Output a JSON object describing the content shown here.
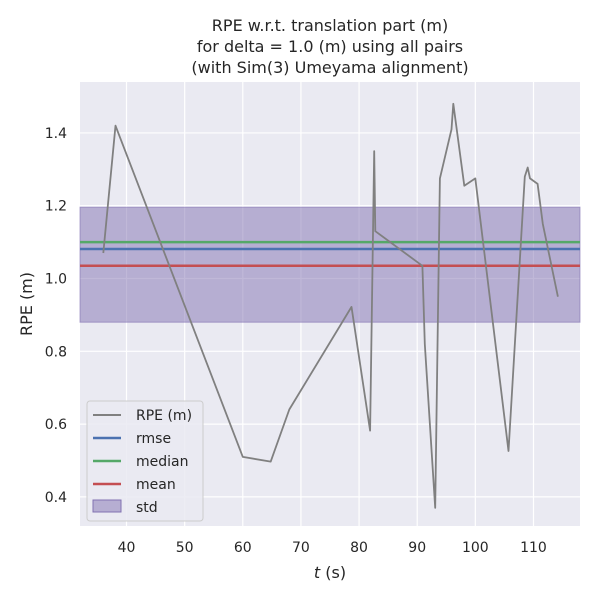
{
  "chart_data": {
    "type": "line",
    "title": [
      "RPE w.r.t. translation part (m)",
      "for delta = 1.0 (m) using all pairs",
      "(with Sim(3) Umeyama alignment)"
    ],
    "xlabel_var": "t",
    "xlabel_unit": " (s)",
    "ylabel": "RPE (m)",
    "xlim": [
      32,
      118
    ],
    "ylim": [
      0.32,
      1.54
    ],
    "xticks": [
      40,
      50,
      60,
      70,
      80,
      90,
      100,
      110
    ],
    "yticks": [
      0.4,
      0.6,
      0.8,
      1.0,
      1.2,
      1.4
    ],
    "ytick_labels": [
      "0.4",
      "0.6",
      "0.8",
      "1.0",
      "1.2",
      "1.4"
    ],
    "grid": true,
    "legend_position": "lower-left",
    "series": [
      {
        "name": "RPE (m)",
        "color": "#808080",
        "x": [
          36.0,
          38.1,
          60.0,
          64.8,
          68.0,
          78.7,
          81.9,
          82.6,
          82.8,
          90.9,
          91.3,
          93.1,
          93.9,
          95.9,
          96.2,
          98.1,
          100.0,
          105.7,
          108.5,
          109.0,
          109.4,
          110.7,
          111.6,
          114.2
        ],
        "y": [
          1.07,
          1.42,
          0.51,
          0.497,
          0.64,
          0.922,
          0.582,
          1.35,
          1.13,
          1.035,
          0.82,
          0.37,
          1.275,
          1.41,
          1.48,
          1.255,
          1.275,
          0.526,
          1.28,
          1.305,
          1.275,
          1.26,
          1.15,
          0.95
        ]
      }
    ],
    "stats": {
      "rmse": {
        "name": "rmse",
        "value": 1.081,
        "color": "#4c72b0"
      },
      "median": {
        "name": "median",
        "value": 1.1,
        "color": "#55a868"
      },
      "mean": {
        "name": "mean",
        "value": 1.035,
        "color": "#c44e52"
      },
      "std": {
        "name": "std",
        "low": 0.88,
        "high": 1.196,
        "color": "#8172b2"
      }
    }
  }
}
